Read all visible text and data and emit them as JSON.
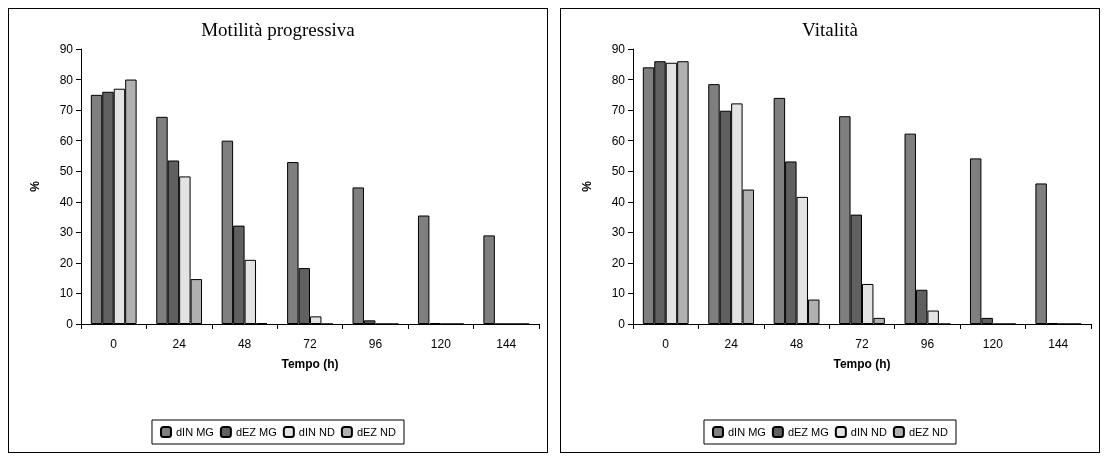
{
  "chart_data": [
    {
      "type": "bar",
      "title": "Motilità progressiva",
      "xlabel": "Tempo (h)",
      "ylabel": "%",
      "categories": [
        "0",
        "24",
        "48",
        "72",
        "96",
        "120",
        "144"
      ],
      "series": [
        {
          "name": "dIN MG",
          "color": "#7f7f7f",
          "values": [
            75,
            67.8,
            60,
            53,
            44.7,
            35.5,
            29
          ]
        },
        {
          "name": "dEZ MG",
          "color": "#606060",
          "values": [
            76,
            53.5,
            32.2,
            18.3,
            1.2,
            0.3,
            0
          ]
        },
        {
          "name": "dIN ND",
          "color": "#e3e3e3",
          "values": [
            77,
            48.3,
            21,
            2.5,
            0,
            0,
            0
          ]
        },
        {
          "name": "dEZ ND",
          "color": "#b0b0b0",
          "values": [
            80,
            14.7,
            0.3,
            0,
            0,
            0,
            0
          ]
        }
      ],
      "ylim": [
        0,
        90
      ],
      "yticks": [
        0,
        10,
        20,
        30,
        40,
        50,
        60,
        70,
        80,
        90
      ],
      "grid": false,
      "legend": "bottom"
    },
    {
      "type": "bar",
      "title": "Vitalità",
      "xlabel": "Tempo (h)",
      "ylabel": "%",
      "categories": [
        "0",
        "24",
        "48",
        "72",
        "96",
        "120",
        "144"
      ],
      "series": [
        {
          "name": "dIN MG",
          "color": "#7f7f7f",
          "values": [
            84,
            78.5,
            74,
            68,
            62.3,
            54.2,
            46
          ]
        },
        {
          "name": "dEZ MG",
          "color": "#606060",
          "values": [
            86,
            69.8,
            53.2,
            35.8,
            11.2,
            2,
            0.3
          ]
        },
        {
          "name": "dIN ND",
          "color": "#e3e3e3",
          "values": [
            85.5,
            72.2,
            41.6,
            13.1,
            4.4,
            0,
            0
          ]
        },
        {
          "name": "dEZ ND",
          "color": "#b0b0b0",
          "values": [
            86,
            44,
            8,
            2,
            0,
            0,
            0
          ]
        }
      ],
      "ylim": [
        0,
        90
      ],
      "yticks": [
        0,
        10,
        20,
        30,
        40,
        50,
        60,
        70,
        80,
        90
      ],
      "grid": false,
      "legend": "bottom"
    }
  ]
}
